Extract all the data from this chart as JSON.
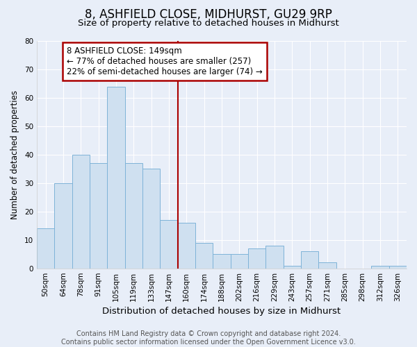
{
  "title": "8, ASHFIELD CLOSE, MIDHURST, GU29 9RP",
  "subtitle": "Size of property relative to detached houses in Midhurst",
  "xlabel": "Distribution of detached houses by size in Midhurst",
  "ylabel": "Number of detached properties",
  "bar_labels": [
    "50sqm",
    "64sqm",
    "78sqm",
    "91sqm",
    "105sqm",
    "119sqm",
    "133sqm",
    "147sqm",
    "160sqm",
    "174sqm",
    "188sqm",
    "202sqm",
    "216sqm",
    "229sqm",
    "243sqm",
    "257sqm",
    "271sqm",
    "285sqm",
    "298sqm",
    "312sqm",
    "326sqm"
  ],
  "bar_heights": [
    14,
    30,
    40,
    37,
    64,
    37,
    35,
    17,
    16,
    9,
    5,
    5,
    7,
    8,
    1,
    6,
    2,
    0,
    0,
    1,
    1
  ],
  "bar_color": "#cfe0f0",
  "bar_edge_color": "#7eb3d8",
  "property_line_x": 7.5,
  "annotation_text1": "8 ASHFIELD CLOSE: 149sqm",
  "annotation_text2": "← 77% of detached houses are smaller (257)",
  "annotation_text3": "22% of semi-detached houses are larger (74) →",
  "annotation_box_color": "#ffffff",
  "annotation_border_color": "#aa0000",
  "vline_color": "#aa0000",
  "ylim": [
    0,
    80
  ],
  "yticks": [
    0,
    10,
    20,
    30,
    40,
    50,
    60,
    70,
    80
  ],
  "background_color": "#e8eef8",
  "grid_color": "#ffffff",
  "footer_line1": "Contains HM Land Registry data © Crown copyright and database right 2024.",
  "footer_line2": "Contains public sector information licensed under the Open Government Licence v3.0.",
  "title_fontsize": 12,
  "subtitle_fontsize": 9.5,
  "xlabel_fontsize": 9.5,
  "ylabel_fontsize": 8.5,
  "tick_fontsize": 7.5,
  "footer_fontsize": 7,
  "annotation_fontsize": 8.5
}
